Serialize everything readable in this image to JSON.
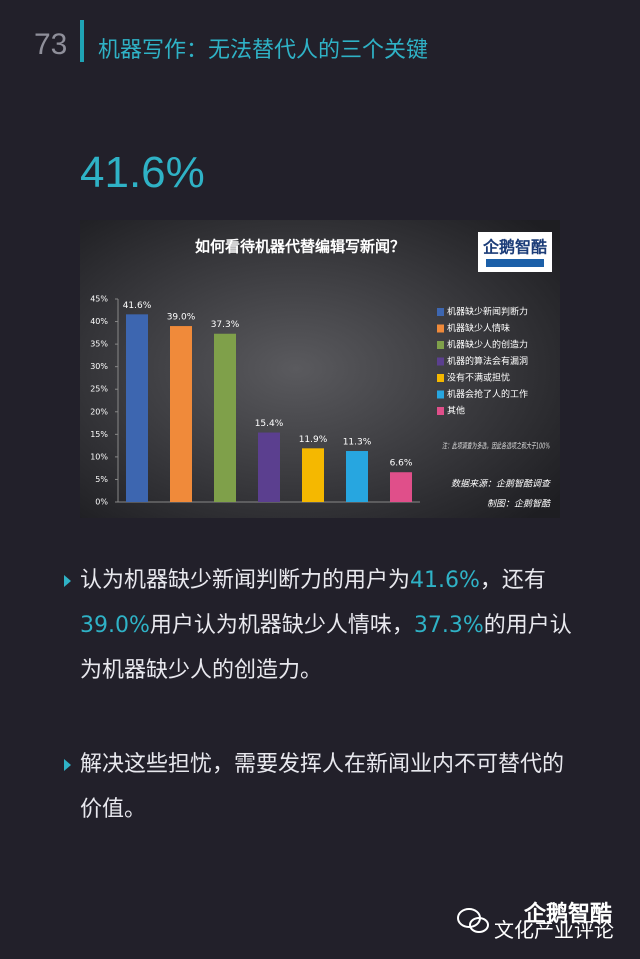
{
  "header": {
    "page_number": "73",
    "title": "机器写作：无法替代人的三个关键"
  },
  "headline": "41.6%",
  "chart_data": {
    "type": "bar",
    "title": "如何看待机器代替编辑写新闻？",
    "logo": "企鹅智酷",
    "categories": [
      "机器缺少新闻判断力",
      "机器缺少人情味",
      "机器缺少人的创造力",
      "机器的算法会有漏洞",
      "没有不满或担忧",
      "机器会抢了人的工作",
      "其他"
    ],
    "values": [
      41.6,
      39.0,
      37.3,
      15.4,
      11.9,
      11.3,
      6.6
    ],
    "value_labels": [
      "41.6%",
      "39.0%",
      "37.3%",
      "15.4%",
      "11.9%",
      "11.3%",
      "6.6%"
    ],
    "colors": [
      "#3d66b0",
      "#f08a3a",
      "#7fa04a",
      "#5b3f8f",
      "#f5b800",
      "#27a6e0",
      "#e04f8a"
    ],
    "ylim": [
      0,
      45
    ],
    "yticks": [
      {
        "value": 0,
        "label": "0%"
      },
      {
        "value": 5,
        "label": "5%"
      },
      {
        "value": 10,
        "label": "10%"
      },
      {
        "value": 15,
        "label": "15%"
      },
      {
        "value": 20,
        "label": "20%"
      },
      {
        "value": 25,
        "label": "25%"
      },
      {
        "value": 30,
        "label": "30%"
      },
      {
        "value": 35,
        "label": "35%"
      },
      {
        "value": 40,
        "label": "40%"
      },
      {
        "value": 45,
        "label": "45%"
      }
    ],
    "note": "注：此项调查为多选，因此各选项之和大于100%",
    "source": "数据来源：企鹅智酷调查",
    "credit": "制图：企鹅智酷"
  },
  "bullets": [
    {
      "segments": [
        {
          "text": "认为机器缺少新闻判断力的用户为",
          "highlight": false
        },
        {
          "text": "41.6%",
          "highlight": true
        },
        {
          "text": "，还有",
          "highlight": false
        },
        {
          "text": "39.0%",
          "highlight": true
        },
        {
          "text": "用户认为机器缺少人情味，",
          "highlight": false
        },
        {
          "text": "37.3%",
          "highlight": true
        },
        {
          "text": "的用户认为机器缺少人的创造力。",
          "highlight": false
        }
      ]
    },
    {
      "segments": [
        {
          "text": "解决这些担忧，需要发挥人在新闻业内不可替代的价值。",
          "highlight": false
        }
      ]
    }
  ],
  "footer": {
    "logo": "企鹅智酷",
    "account": "文化产业评论"
  }
}
